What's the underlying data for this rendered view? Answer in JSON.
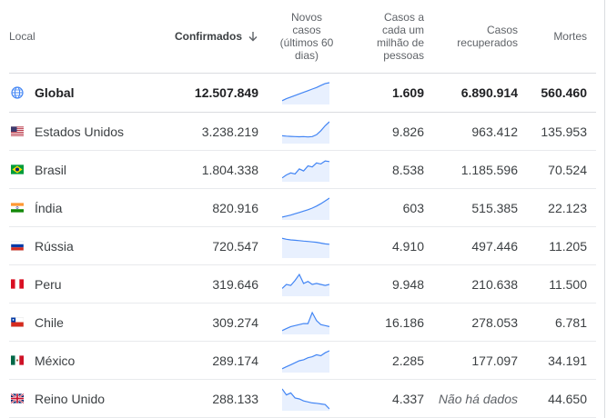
{
  "header": {
    "local": "Local",
    "confirmed": "Confirmados",
    "new_cases": [
      "Novos",
      "casos",
      "(últimos 60",
      "dias)"
    ],
    "per_million": [
      "Casos a",
      "cada um",
      "milhão de",
      "pessoas"
    ],
    "recovered": [
      "Casos",
      "recuperados"
    ],
    "deaths": "Mortes"
  },
  "colors": {
    "spark_line": "#4285f4",
    "spark_fill": "#e8f0fe",
    "divider": "#e8eaed"
  },
  "rows": [
    {
      "flag": "globe-icon",
      "name": "Global",
      "confirmed": "12.507.849",
      "per_million": "1.609",
      "recovered": "6.890.914",
      "deaths": "560.460",
      "trend": [
        0.1,
        0.2,
        0.28,
        0.36,
        0.44,
        0.52,
        0.6,
        0.68,
        0.76,
        0.86,
        0.96,
        1.0
      ]
    },
    {
      "flag": "us-flag-icon",
      "name": "Estados Unidos",
      "confirmed": "3.238.219",
      "per_million": "9.826",
      "recovered": "963.412",
      "deaths": "135.953",
      "trend": [
        0.3,
        0.28,
        0.27,
        0.26,
        0.25,
        0.26,
        0.24,
        0.26,
        0.35,
        0.55,
        0.8,
        1.0
      ]
    },
    {
      "flag": "br-flag-icon",
      "name": "Brasil",
      "confirmed": "1.804.338",
      "per_million": "8.538",
      "recovered": "1.185.596",
      "deaths": "70.524",
      "trend": [
        0.1,
        0.25,
        0.35,
        0.3,
        0.55,
        0.45,
        0.7,
        0.65,
        0.85,
        0.8,
        0.95,
        0.92
      ]
    },
    {
      "flag": "in-flag-icon",
      "name": "Índia",
      "confirmed": "820.916",
      "per_million": "603",
      "recovered": "515.385",
      "deaths": "22.123",
      "trend": [
        0.05,
        0.1,
        0.15,
        0.22,
        0.28,
        0.35,
        0.42,
        0.5,
        0.6,
        0.72,
        0.86,
        1.0
      ]
    },
    {
      "flag": "ru-flag-icon",
      "name": "Rússia",
      "confirmed": "720.547",
      "per_million": "4.910",
      "recovered": "497.446",
      "deaths": "11.205",
      "trend": [
        0.9,
        0.85,
        0.82,
        0.8,
        0.78,
        0.76,
        0.74,
        0.72,
        0.7,
        0.66,
        0.62,
        0.6
      ]
    },
    {
      "flag": "pe-flag-icon",
      "name": "Peru",
      "confirmed": "319.646",
      "per_million": "9.948",
      "recovered": "210.638",
      "deaths": "11.500",
      "trend": [
        0.3,
        0.5,
        0.45,
        0.7,
        1.0,
        0.55,
        0.65,
        0.5,
        0.55,
        0.5,
        0.45,
        0.5
      ]
    },
    {
      "flag": "cl-flag-icon",
      "name": "Chile",
      "confirmed": "309.274",
      "per_million": "16.186",
      "recovered": "278.053",
      "deaths": "6.781",
      "trend": [
        0.1,
        0.2,
        0.3,
        0.35,
        0.4,
        0.45,
        0.45,
        1.0,
        0.6,
        0.4,
        0.35,
        0.3
      ]
    },
    {
      "flag": "mx-flag-icon",
      "name": "México",
      "confirmed": "289.174",
      "per_million": "2.285",
      "recovered": "177.097",
      "deaths": "34.191",
      "trend": [
        0.1,
        0.2,
        0.3,
        0.4,
        0.5,
        0.55,
        0.65,
        0.7,
        0.8,
        0.75,
        0.9,
        1.0
      ]
    },
    {
      "flag": "gb-flag-icon",
      "name": "Reino Unido",
      "confirmed": "288.133",
      "per_million": "4.337",
      "recovered": "Não há dados",
      "deaths": "44.650",
      "trend": [
        1.0,
        0.7,
        0.8,
        0.55,
        0.5,
        0.4,
        0.35,
        0.3,
        0.28,
        0.25,
        0.22,
        0.0
      ]
    }
  ]
}
